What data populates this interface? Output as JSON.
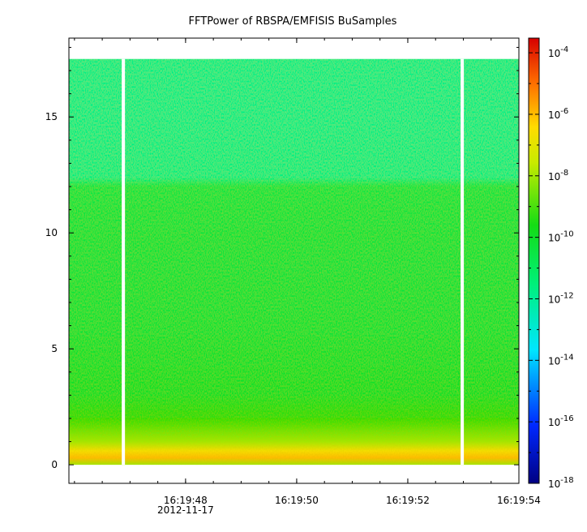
{
  "chart_data": {
    "type": "heatmap",
    "title": "FFTPower of RBSPA/EMFISIS  BuSamples",
    "xlabel": "",
    "ylabel": "",
    "x_ticks": [
      "16:19:48",
      "16:19:50",
      "16:19:52",
      "16:19:54"
    ],
    "x_date_label": "2012-11-17",
    "x_range": [
      "16:19:45.90",
      "16:19:54.00"
    ],
    "y_range": [
      -0.8,
      18.4
    ],
    "y_ticks": [
      0,
      5,
      10,
      15
    ],
    "y_tick_labels": [
      "0",
      "5",
      "10",
      "15"
    ],
    "data_y_range": [
      0,
      17.5
    ],
    "colorbar": {
      "scale": "log",
      "range": [
        1e-18,
        0.0003
      ],
      "ticks": [
        {
          "base": "10",
          "exp": "-4",
          "value": 0.0001
        },
        {
          "base": "10",
          "exp": "-6",
          "value": 1e-06
        },
        {
          "base": "10",
          "exp": "-8",
          "value": 1e-08
        },
        {
          "base": "10",
          "exp": "-10",
          "value": 1e-10
        },
        {
          "base": "10",
          "exp": "-12",
          "value": 1e-12
        },
        {
          "base": "10",
          "exp": "-14",
          "value": 1e-14
        },
        {
          "base": "10",
          "exp": "-16",
          "value": 1e-16
        },
        {
          "base": "10",
          "exp": "-18",
          "value": 1e-18
        }
      ]
    },
    "data_gaps_x": [
      "16:19:46.88",
      "16:19:52.98"
    ],
    "power_profile_by_y": [
      {
        "y": 0.0,
        "log10_power": -8.0
      },
      {
        "y": 0.3,
        "log10_power": -6.0
      },
      {
        "y": 0.6,
        "log10_power": -6.6
      },
      {
        "y": 1.0,
        "log10_power": -8.0
      },
      {
        "y": 1.5,
        "log10_power": -8.6
      },
      {
        "y": 2.0,
        "log10_power": -9.3
      },
      {
        "y": 3.0,
        "log10_power": -10.0
      },
      {
        "y": 6.0,
        "log10_power": -10.3
      },
      {
        "y": 10.0,
        "log10_power": -10.4
      },
      {
        "y": 12.0,
        "log10_power": -10.5
      },
      {
        "y": 12.4,
        "log10_power": -11.6
      },
      {
        "y": 15.0,
        "log10_power": -11.7
      },
      {
        "y": 17.5,
        "log10_power": -11.7
      }
    ]
  }
}
